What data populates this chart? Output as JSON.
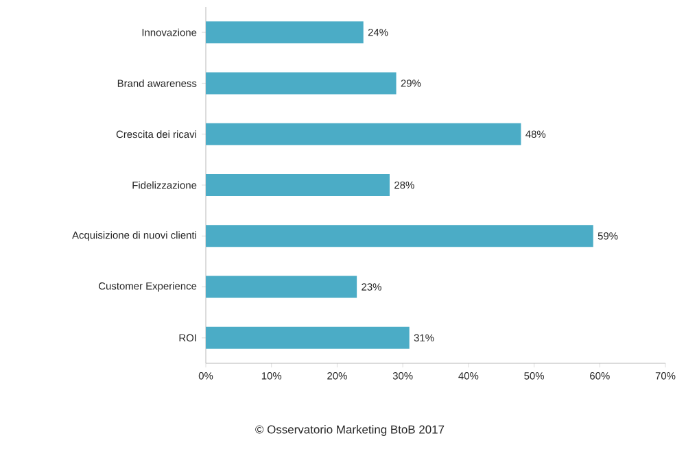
{
  "chart_data": {
    "type": "bar",
    "orientation": "horizontal",
    "categories": [
      "Innovazione",
      "Brand awareness",
      "Crescita dei ricavi",
      "Fidelizzazione",
      "Acquisizione di nuovi clienti",
      "Customer Experience",
      "ROI"
    ],
    "values": [
      24,
      29,
      48,
      28,
      59,
      23,
      31
    ],
    "value_labels": [
      "24%",
      "29%",
      "48%",
      "28%",
      "59%",
      "23%",
      "31%"
    ],
    "color": "#4bacc6",
    "xlim": [
      0,
      70
    ],
    "xticks": [
      {
        "value": 0,
        "label": "0%"
      },
      {
        "value": 10,
        "label": "10%"
      },
      {
        "value": 20,
        "label": "20%"
      },
      {
        "value": 30,
        "label": "30%"
      },
      {
        "value": 40,
        "label": "40%"
      },
      {
        "value": 50,
        "label": "50%"
      },
      {
        "value": 60,
        "label": "60%"
      },
      {
        "value": 70,
        "label": "70%"
      }
    ],
    "annotations": [
      "© Osservatorio Marketing BtoB 2017"
    ]
  }
}
